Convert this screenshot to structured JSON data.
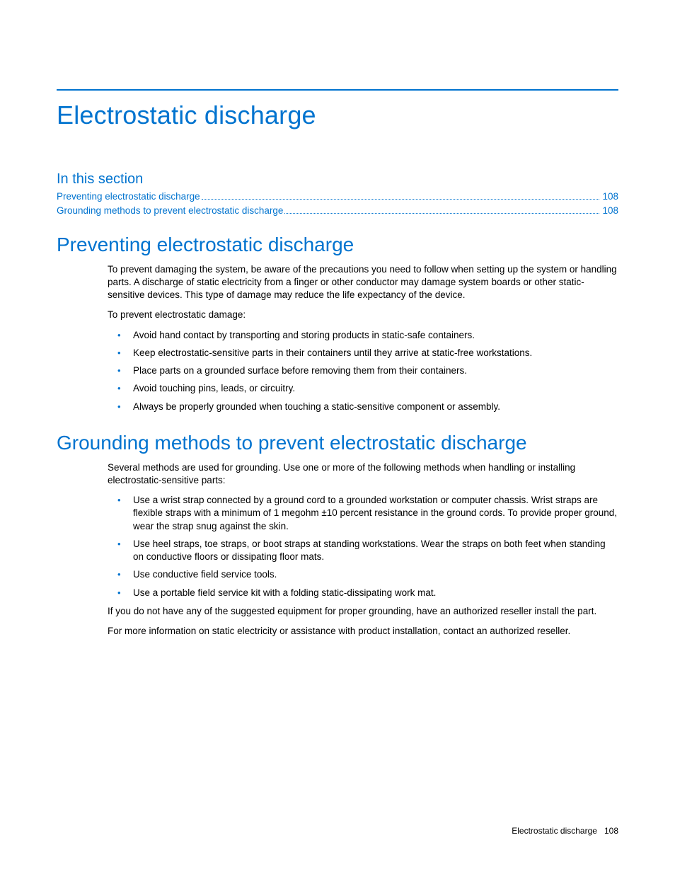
{
  "colors": {
    "accent": "#0073cf",
    "text": "#000000",
    "background": "#ffffff"
  },
  "typography": {
    "heading_family": "Futura / Trebuchet MS",
    "body_family": "Arial",
    "h1_size_pt": 27,
    "h2_size_pt": 21,
    "h3_size_pt": 15,
    "body_size_pt": 10
  },
  "page_title": "Electrostatic discharge",
  "in_this_section_heading": "In this section",
  "toc": [
    {
      "label": "Preventing electrostatic discharge",
      "page": "108"
    },
    {
      "label": "Grounding methods to prevent electrostatic discharge",
      "page": "108"
    }
  ],
  "sections": {
    "preventing": {
      "heading": "Preventing electrostatic discharge",
      "intro": "To prevent damaging the system, be aware of the precautions you need to follow when setting up the system or handling parts. A discharge of static electricity from a finger or other conductor may damage system boards or other static-sensitive devices. This type of damage may reduce the life expectancy of the device.",
      "lead": "To prevent electrostatic damage:",
      "bullets": [
        "Avoid hand contact by transporting and storing products in static-safe containers.",
        "Keep electrostatic-sensitive parts in their containers until they arrive at static-free workstations.",
        "Place parts on a grounded surface before removing them from their containers.",
        "Avoid touching pins, leads, or circuitry.",
        "Always be properly grounded when touching a static-sensitive component or assembly."
      ]
    },
    "grounding": {
      "heading": "Grounding methods to prevent electrostatic discharge",
      "intro": "Several methods are used for grounding. Use one or more of the following methods when handling or installing electrostatic-sensitive parts:",
      "bullets": [
        "Use a wrist strap connected by a ground cord to a grounded workstation or computer chassis. Wrist straps are flexible straps with a minimum of 1 megohm ±10 percent resistance in the ground cords. To provide proper ground, wear the strap snug against the skin.",
        "Use heel straps, toe straps, or boot straps at standing workstations. Wear the straps on both feet when standing on conductive floors or dissipating floor mats.",
        "Use conductive field service tools.",
        "Use a portable field service kit with a folding static-dissipating work mat."
      ],
      "outro1": "If you do not have any of the suggested equipment for proper grounding, have an authorized reseller install the part.",
      "outro2": "For more information on static electricity or assistance with product installation, contact an authorized reseller."
    }
  },
  "footer": {
    "label": "Electrostatic discharge",
    "page": "108"
  }
}
